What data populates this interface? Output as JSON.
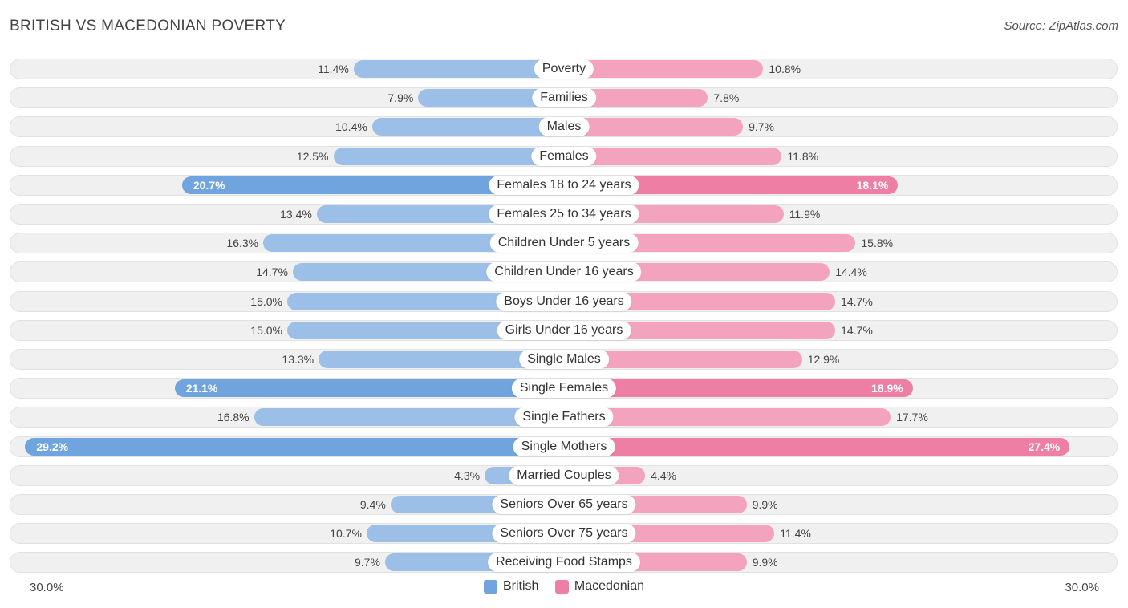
{
  "title": "BRITISH VS MACEDONIAN POVERTY",
  "source": "Source: ZipAtlas.com",
  "colors": {
    "british": "#6fa4de",
    "macedonian": "#ef7ea4"
  },
  "chart_data": {
    "type": "bar",
    "orientation": "horizontal-diverging",
    "title": "BRITISH VS MACEDONIAN POVERTY",
    "xlim": [
      -30.0,
      30.0
    ],
    "axis_left_label": "30.0%",
    "axis_right_label": "30.0%",
    "legend": [
      "British",
      "Macedonian"
    ],
    "categories": [
      "Poverty",
      "Families",
      "Males",
      "Females",
      "Females 18 to 24 years",
      "Females 25 to 34 years",
      "Children Under 5 years",
      "Children Under 16 years",
      "Boys Under 16 years",
      "Girls Under 16 years",
      "Single Males",
      "Single Females",
      "Single Fathers",
      "Single Mothers",
      "Married Couples",
      "Seniors Over 65 years",
      "Seniors Over 75 years",
      "Receiving Food Stamps"
    ],
    "series": [
      {
        "name": "British",
        "values": [
          11.4,
          7.9,
          10.4,
          12.5,
          20.7,
          13.4,
          16.3,
          14.7,
          15.0,
          15.0,
          13.3,
          21.1,
          16.8,
          29.2,
          4.3,
          9.4,
          10.7,
          9.7
        ]
      },
      {
        "name": "Macedonian",
        "values": [
          10.8,
          7.8,
          9.7,
          11.8,
          18.1,
          11.9,
          15.8,
          14.4,
          14.7,
          14.7,
          12.9,
          18.9,
          17.7,
          27.4,
          4.4,
          9.9,
          11.4,
          9.9
        ]
      }
    ]
  }
}
